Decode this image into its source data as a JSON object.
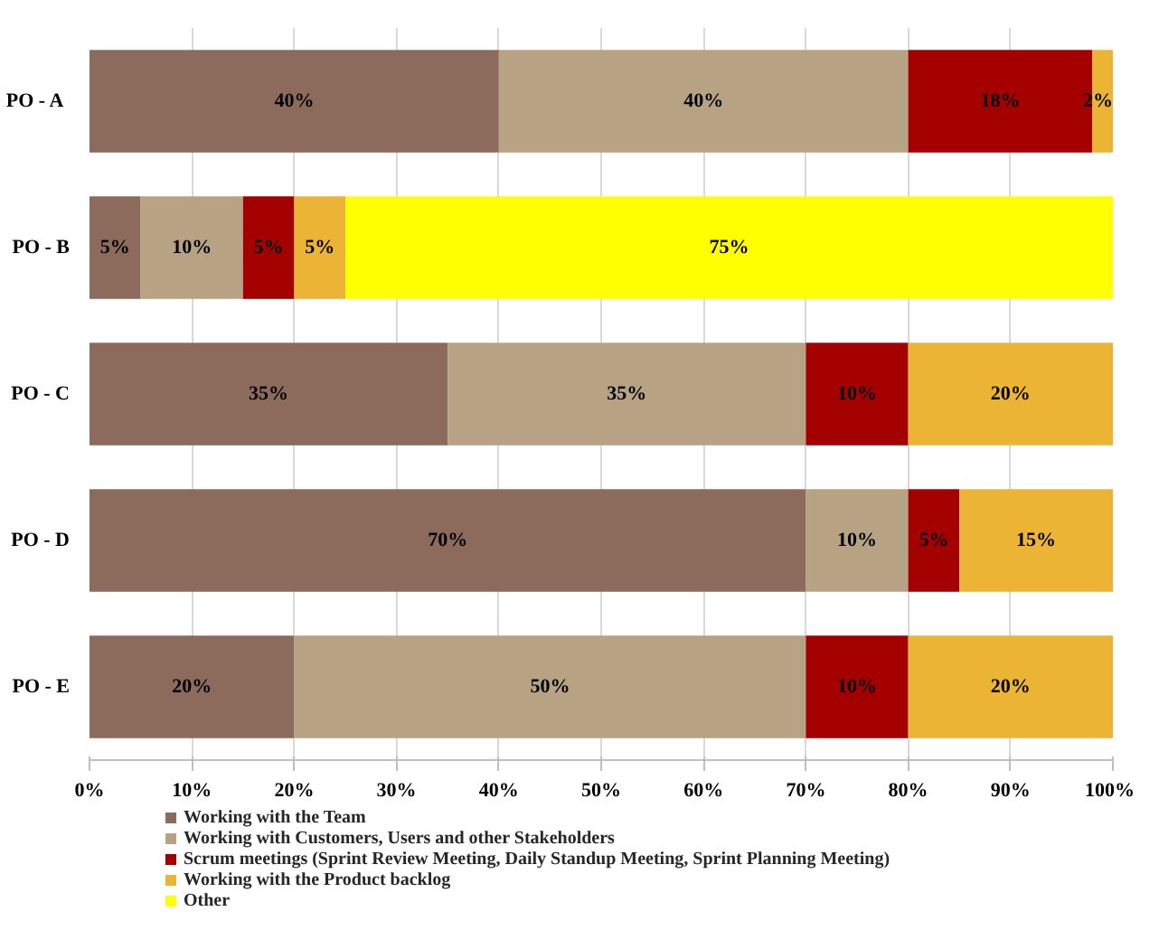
{
  "chart_data": {
    "type": "bar",
    "orientation": "horizontal",
    "stacked": true,
    "categories": [
      "PO -  A",
      "PO - B",
      "PO - C",
      "PO - D",
      "PO - E"
    ],
    "series": [
      {
        "name": "Working with the Team",
        "color": "#8c6a5c",
        "values": [
          40,
          5,
          35,
          70,
          20
        ],
        "value_labels": [
          "40%",
          "5%",
          "35%",
          "70%",
          "20%"
        ]
      },
      {
        "name": "Working with Customers, Users and other Stakeholders",
        "color": "#b8a284",
        "values": [
          40,
          10,
          35,
          10,
          50
        ],
        "value_labels": [
          "40%",
          "10%",
          "35%",
          "10%",
          "50%"
        ]
      },
      {
        "name": "Scrum meetings  (Sprint Review Meeting, Daily Standup Meeting, Sprint Planning Meeting)",
        "color": "#a50000",
        "values": [
          18,
          5,
          10,
          5,
          10
        ],
        "value_labels": [
          "18%",
          "5%",
          "10%",
          "5%",
          "10%"
        ]
      },
      {
        "name": "Working with the Product backlog",
        "color": "#ebb434",
        "values": [
          2,
          5,
          20,
          15,
          20
        ],
        "value_labels": [
          "2%",
          "5%",
          "20%",
          "15%",
          "20%"
        ]
      },
      {
        "name": "Other",
        "color": "#ffff00",
        "values": [
          null,
          75,
          null,
          null,
          null
        ],
        "value_labels": [
          null,
          "75%",
          null,
          null,
          null
        ]
      }
    ],
    "xlim": [
      0,
      100
    ],
    "xticks": [
      {
        "value": 0,
        "label": "0%"
      },
      {
        "value": 10,
        "label": "10%"
      },
      {
        "value": 20,
        "label": "20%"
      },
      {
        "value": 30,
        "label": "30%"
      },
      {
        "value": 40,
        "label": "40%"
      },
      {
        "value": 50,
        "label": "50%"
      },
      {
        "value": 60,
        "label": "60%"
      },
      {
        "value": 70,
        "label": "70%"
      },
      {
        "value": 80,
        "label": "80%"
      },
      {
        "value": 90,
        "label": "90%"
      },
      {
        "value": 100,
        "label": "100%"
      }
    ],
    "grid": "x",
    "legend": "bottom"
  }
}
